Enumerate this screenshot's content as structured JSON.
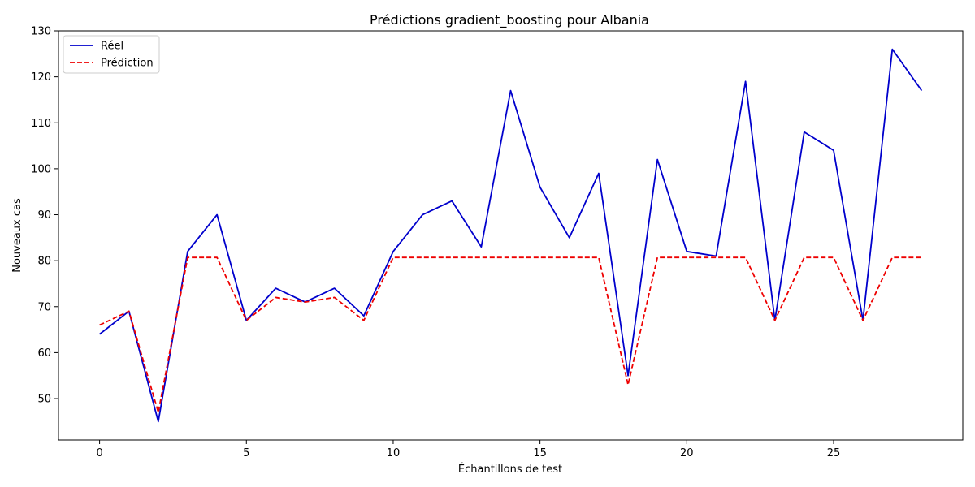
{
  "chart_data": {
    "type": "line",
    "title": "Prédictions gradient_boosting pour Albania",
    "xlabel": "Échantillons de test",
    "ylabel": "Nouveaux cas",
    "xlim": [
      -1.4,
      29.4
    ],
    "ylim": [
      41,
      130
    ],
    "xticks": [
      0,
      5,
      10,
      15,
      20,
      25
    ],
    "yticks": [
      50,
      60,
      70,
      80,
      90,
      100,
      110,
      120,
      130
    ],
    "grid": false,
    "legend": "top-left",
    "x": [
      0,
      1,
      2,
      3,
      4,
      5,
      6,
      7,
      8,
      9,
      10,
      11,
      12,
      13,
      14,
      15,
      16,
      17,
      18,
      19,
      20,
      21,
      22,
      23,
      24,
      25,
      26,
      27,
      28
    ],
    "series": [
      {
        "name": "Réel",
        "color": "#0000cc",
        "style": "solid",
        "values": [
          64,
          69,
          45,
          82,
          90,
          67,
          74,
          71,
          74,
          68,
          82,
          90,
          93,
          83,
          117,
          96,
          85,
          99,
          55,
          102,
          82,
          81,
          119,
          67,
          108,
          104,
          67,
          126,
          117
        ]
      },
      {
        "name": "Prédiction",
        "color": "#ee0000",
        "style": "dashed",
        "values": [
          66,
          69,
          47,
          80.7,
          80.7,
          67,
          72,
          71,
          72,
          67,
          80.7,
          80.7,
          80.7,
          80.7,
          80.7,
          80.7,
          80.7,
          80.7,
          53,
          80.7,
          80.7,
          80.7,
          80.7,
          67,
          80.7,
          80.7,
          67,
          80.7,
          80.7
        ]
      }
    ]
  }
}
